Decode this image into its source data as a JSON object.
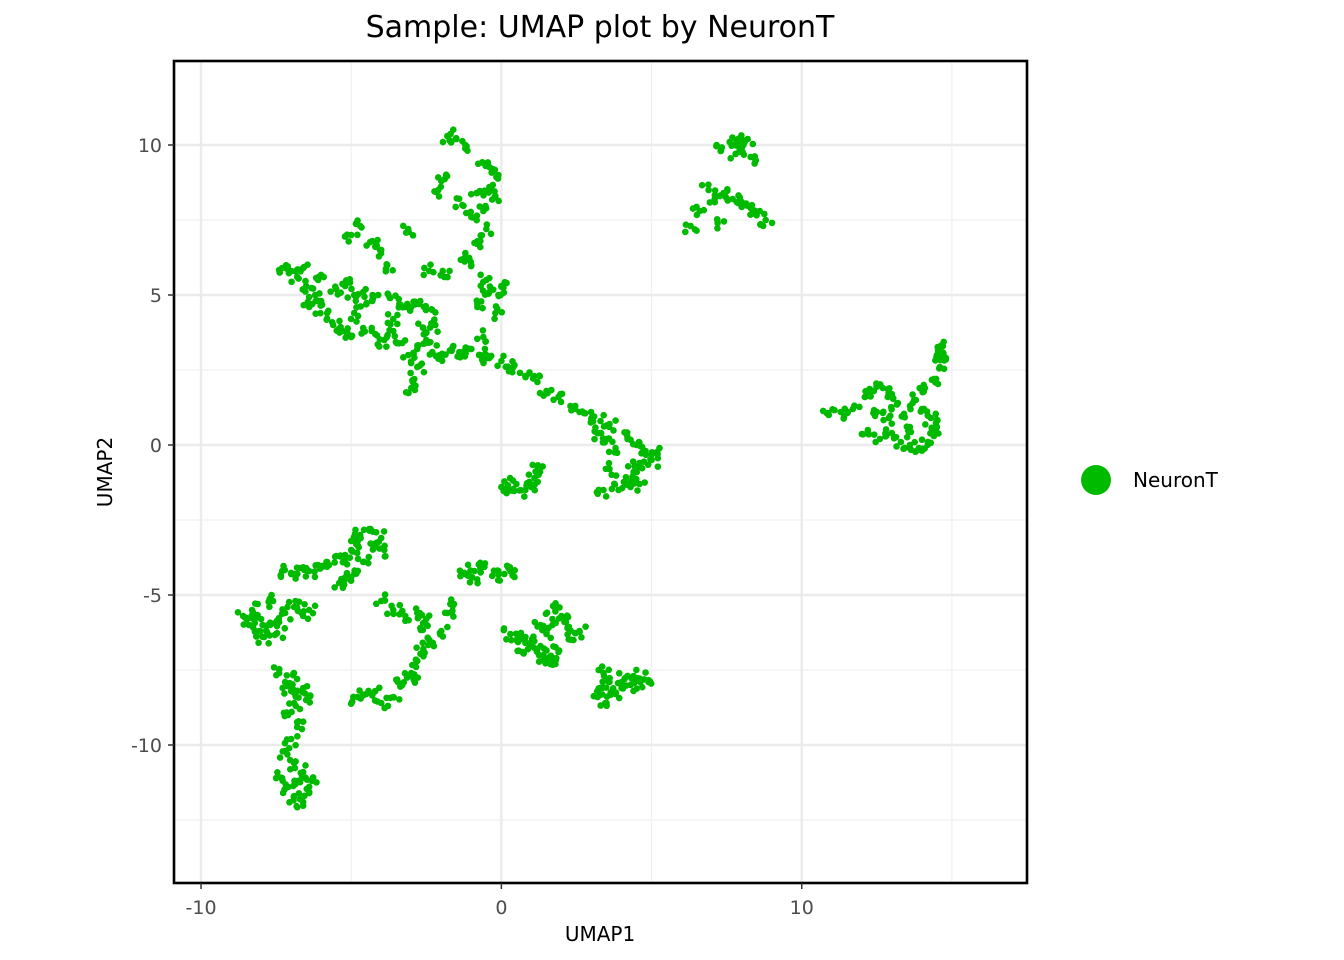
{
  "chart_data": {
    "type": "scatter",
    "title": "Sample: UMAP plot by NeuronT",
    "xlabel": "UMAP1",
    "ylabel": "UMAP2",
    "xlim": [
      -10.9,
      17.5
    ],
    "ylim": [
      -14.6,
      12.8
    ],
    "xticks": [
      -10,
      0,
      10
    ],
    "xtick_labels": [
      "-10",
      "0",
      "10"
    ],
    "yticks": [
      -10,
      -5,
      0,
      5,
      10
    ],
    "ytick_labels": [
      "-10",
      "-5",
      "0",
      "5",
      "10"
    ],
    "grid": true,
    "legend_position": "right",
    "series": [
      {
        "name": "NeuronT",
        "color": "#00BA00",
        "points": [
          [
            -1.5,
            10.2
          ],
          [
            -1.2,
            10.0
          ],
          [
            -1.8,
            10.3
          ],
          [
            -0.6,
            9.4
          ],
          [
            -0.3,
            9.2
          ],
          [
            -0.1,
            9.0
          ],
          [
            -0.4,
            8.6
          ],
          [
            -0.8,
            8.4
          ],
          [
            -0.2,
            8.3
          ],
          [
            -2.0,
            8.8
          ],
          [
            -2.1,
            8.5
          ],
          [
            -1.3,
            8.0
          ],
          [
            -1.0,
            7.6
          ],
          [
            -0.6,
            7.8
          ],
          [
            -0.5,
            7.2
          ],
          [
            -0.7,
            6.8
          ],
          [
            -1.2,
            6.4
          ],
          [
            -1.0,
            6.0
          ],
          [
            -0.5,
            5.5
          ],
          [
            -0.4,
            5.1
          ],
          [
            -0.1,
            5.0
          ],
          [
            -0.8,
            4.6
          ],
          [
            -0.2,
            4.4
          ],
          [
            0.0,
            5.3
          ],
          [
            -0.6,
            3.6
          ],
          [
            -5.0,
            7.0
          ],
          [
            -4.7,
            7.3
          ],
          [
            -4.3,
            6.8
          ],
          [
            -4.0,
            6.5
          ],
          [
            -3.8,
            6.0
          ],
          [
            -3.1,
            7.2
          ],
          [
            -1.9,
            5.6
          ],
          [
            -2.4,
            5.8
          ],
          [
            -7.3,
            5.9
          ],
          [
            -7.0,
            5.8
          ],
          [
            -6.6,
            5.9
          ],
          [
            -6.8,
            5.6
          ],
          [
            -6.5,
            5.3
          ],
          [
            -6.2,
            5.0
          ],
          [
            -6.0,
            4.8
          ],
          [
            -5.8,
            4.4
          ],
          [
            -5.5,
            5.2
          ],
          [
            -5.2,
            5.3
          ],
          [
            -4.9,
            5.0
          ],
          [
            -4.6,
            5.1
          ],
          [
            -4.3,
            4.8
          ],
          [
            -4.1,
            5.0
          ],
          [
            -3.7,
            4.9
          ],
          [
            -3.4,
            4.7
          ],
          [
            -3.0,
            4.6
          ],
          [
            -2.7,
            4.8
          ],
          [
            -2.3,
            4.5
          ],
          [
            -5.6,
            4.0
          ],
          [
            -5.3,
            3.8
          ],
          [
            -5.0,
            3.6
          ],
          [
            -4.6,
            3.9
          ],
          [
            -4.2,
            3.7
          ],
          [
            -3.9,
            3.5
          ],
          [
            -3.6,
            3.8
          ],
          [
            -3.3,
            3.4
          ],
          [
            -3.1,
            3.0
          ],
          [
            -2.8,
            3.2
          ],
          [
            -2.5,
            3.5
          ],
          [
            -2.3,
            3.1
          ],
          [
            -2.0,
            2.9
          ],
          [
            -2.8,
            2.6
          ],
          [
            -1.6,
            3.3
          ],
          [
            -1.3,
            3.1
          ],
          [
            -1.0,
            3.2
          ],
          [
            -0.7,
            3.0
          ],
          [
            -0.4,
            2.9
          ],
          [
            -6.1,
            5.5
          ],
          [
            -6.4,
            4.6
          ],
          [
            -4.9,
            4.4
          ],
          [
            -3.6,
            4.2
          ],
          [
            -2.6,
            3.9
          ],
          [
            -2.2,
            4.0
          ],
          [
            -3.0,
            1.9
          ],
          [
            -2.9,
            2.2
          ],
          [
            0.0,
            2.8
          ],
          [
            0.4,
            2.6
          ],
          [
            0.8,
            2.3
          ],
          [
            1.2,
            2.1
          ],
          [
            1.5,
            1.8
          ],
          [
            1.9,
            1.6
          ],
          [
            2.3,
            1.3
          ],
          [
            2.6,
            1.1
          ],
          [
            3.0,
            0.9
          ],
          [
            3.3,
            0.8
          ],
          [
            3.6,
            0.7
          ],
          [
            3.2,
            0.4
          ],
          [
            3.5,
            0.2
          ],
          [
            3.8,
            -0.1
          ],
          [
            4.2,
            0.2
          ],
          [
            4.5,
            0.0
          ],
          [
            4.8,
            -0.2
          ],
          [
            5.0,
            -0.5
          ],
          [
            5.2,
            -0.3
          ],
          [
            4.6,
            -0.6
          ],
          [
            4.4,
            -0.9
          ],
          [
            4.2,
            -1.2
          ],
          [
            4.6,
            -1.3
          ],
          [
            4.3,
            -1.4
          ],
          [
            3.6,
            -0.8
          ],
          [
            3.9,
            -1.5
          ],
          [
            3.4,
            -1.5
          ],
          [
            0.0,
            -1.4
          ],
          [
            0.2,
            -1.5
          ],
          [
            0.5,
            -1.3
          ],
          [
            1.0,
            -1.4
          ],
          [
            1.1,
            -1.1
          ],
          [
            1.2,
            -0.7
          ],
          [
            0.8,
            -1.5
          ],
          [
            6.3,
            7.3
          ],
          [
            6.6,
            7.8
          ],
          [
            6.9,
            8.5
          ],
          [
            7.1,
            8.2
          ],
          [
            7.4,
            8.4
          ],
          [
            7.7,
            8.2
          ],
          [
            8.0,
            8.1
          ],
          [
            8.3,
            7.9
          ],
          [
            8.6,
            7.8
          ],
          [
            8.8,
            7.5
          ],
          [
            7.3,
            9.8
          ],
          [
            7.6,
            10.1
          ],
          [
            7.9,
            10.2
          ],
          [
            8.2,
            10.2
          ],
          [
            7.8,
            9.7
          ],
          [
            8.0,
            9.9
          ],
          [
            7.2,
            7.4
          ],
          [
            8.3,
            9.6
          ],
          [
            10.9,
            1.0
          ],
          [
            11.3,
            1.1
          ],
          [
            11.7,
            1.2
          ],
          [
            12.1,
            1.6
          ],
          [
            12.4,
            1.8
          ],
          [
            12.7,
            1.9
          ],
          [
            13.0,
            1.7
          ],
          [
            13.2,
            1.4
          ],
          [
            12.5,
            1.1
          ],
          [
            12.9,
            0.9
          ],
          [
            12.2,
            0.5
          ],
          [
            12.6,
            0.2
          ],
          [
            13.0,
            0.4
          ],
          [
            13.3,
            0.1
          ],
          [
            13.6,
            0.0
          ],
          [
            13.9,
            -0.1
          ],
          [
            14.2,
            0.1
          ],
          [
            14.4,
            0.3
          ],
          [
            14.5,
            0.6
          ],
          [
            14.3,
            0.9
          ],
          [
            14.0,
            1.2
          ],
          [
            13.8,
            1.5
          ],
          [
            14.1,
            1.9
          ],
          [
            14.4,
            2.2
          ],
          [
            14.6,
            2.6
          ],
          [
            14.8,
            2.9
          ],
          [
            14.7,
            3.3
          ],
          [
            14.5,
            3.0
          ],
          [
            13.6,
            0.6
          ],
          [
            13.4,
            1.0
          ],
          [
            -4.4,
            -2.8
          ],
          [
            -4.7,
            -3.0
          ],
          [
            -5.0,
            -3.2
          ],
          [
            -4.3,
            -3.3
          ],
          [
            -4.0,
            -3.1
          ],
          [
            -3.9,
            -3.5
          ],
          [
            -4.8,
            -3.6
          ],
          [
            -5.2,
            -3.8
          ],
          [
            -5.5,
            -3.7
          ],
          [
            -5.8,
            -3.9
          ],
          [
            -6.1,
            -4.0
          ],
          [
            -6.4,
            -4.2
          ],
          [
            -6.7,
            -4.1
          ],
          [
            -7.0,
            -4.3
          ],
          [
            -7.3,
            -4.2
          ],
          [
            -4.6,
            -3.9
          ],
          [
            -4.9,
            -4.3
          ],
          [
            -5.4,
            -4.6
          ],
          [
            -5.0,
            -4.4
          ],
          [
            -8.6,
            -5.7
          ],
          [
            -8.3,
            -5.5
          ],
          [
            -8.0,
            -5.8
          ],
          [
            -7.7,
            -6.0
          ],
          [
            -7.4,
            -5.9
          ],
          [
            -8.2,
            -6.2
          ],
          [
            -7.9,
            -6.4
          ],
          [
            -7.5,
            -6.3
          ],
          [
            -7.2,
            -5.6
          ],
          [
            -6.9,
            -5.4
          ],
          [
            -6.6,
            -5.7
          ],
          [
            -6.4,
            -5.5
          ],
          [
            -7.6,
            -5.2
          ],
          [
            -8.4,
            -6.0
          ],
          [
            -7.4,
            -7.6
          ],
          [
            -7.2,
            -7.9
          ],
          [
            -7.0,
            -8.2
          ],
          [
            -6.8,
            -7.8
          ],
          [
            -6.6,
            -8.1
          ],
          [
            -6.9,
            -8.6
          ],
          [
            -7.1,
            -9.0
          ],
          [
            -6.8,
            -9.4
          ],
          [
            -7.0,
            -9.8
          ],
          [
            -7.2,
            -10.2
          ],
          [
            -6.9,
            -10.6
          ],
          [
            -6.6,
            -10.9
          ],
          [
            -6.8,
            -11.2
          ],
          [
            -7.1,
            -11.4
          ],
          [
            -6.9,
            -11.7
          ],
          [
            -6.6,
            -11.9
          ],
          [
            -6.4,
            -11.6
          ],
          [
            -6.3,
            -11.2
          ],
          [
            -6.5,
            -8.5
          ],
          [
            -7.3,
            -11.1
          ],
          [
            -4.2,
            -8.2
          ],
          [
            -4.5,
            -8.3
          ],
          [
            -4.8,
            -8.4
          ],
          [
            -4.0,
            -8.6
          ],
          [
            -3.6,
            -8.4
          ],
          [
            -3.3,
            -8.0
          ],
          [
            -3.0,
            -7.6
          ],
          [
            -2.8,
            -7.2
          ],
          [
            -3.1,
            -7.7
          ],
          [
            -2.6,
            -6.8
          ],
          [
            -2.4,
            -6.5
          ],
          [
            -2.7,
            -6.1
          ],
          [
            -2.5,
            -5.8
          ],
          [
            -2.8,
            -5.6
          ],
          [
            -3.2,
            -5.7
          ],
          [
            -3.6,
            -5.5
          ],
          [
            -4.0,
            -5.2
          ],
          [
            -1.8,
            -5.6
          ],
          [
            -1.7,
            -5.3
          ],
          [
            -2.0,
            -6.2
          ],
          [
            -1.2,
            -4.3
          ],
          [
            -0.9,
            -4.2
          ],
          [
            -0.7,
            -4.1
          ],
          [
            -0.1,
            -4.2
          ],
          [
            0.1,
            -4.3
          ],
          [
            0.3,
            -4.2
          ],
          [
            -1.0,
            -4.4
          ],
          [
            0.3,
            -6.3
          ],
          [
            0.5,
            -6.5
          ],
          [
            0.8,
            -6.4
          ],
          [
            1.0,
            -6.6
          ],
          [
            1.2,
            -6.8
          ],
          [
            1.4,
            -7.0
          ],
          [
            1.6,
            -7.2
          ],
          [
            1.8,
            -7.3
          ],
          [
            1.5,
            -6.3
          ],
          [
            1.7,
            -5.8
          ],
          [
            1.8,
            -5.5
          ],
          [
            2.0,
            -5.7
          ],
          [
            2.2,
            -6.1
          ],
          [
            2.4,
            -6.5
          ],
          [
            2.6,
            -6.2
          ],
          [
            1.3,
            -6.0
          ],
          [
            0.7,
            -6.9
          ],
          [
            1.9,
            -6.9
          ],
          [
            3.2,
            -8.4
          ],
          [
            3.5,
            -8.6
          ],
          [
            3.8,
            -8.3
          ],
          [
            4.0,
            -8.1
          ],
          [
            4.3,
            -8.0
          ],
          [
            4.6,
            -7.8
          ],
          [
            4.9,
            -7.9
          ],
          [
            4.4,
            -7.7
          ],
          [
            4.1,
            -7.8
          ],
          [
            3.6,
            -7.9
          ],
          [
            3.3,
            -8.1
          ],
          [
            3.4,
            -7.6
          ]
        ]
      }
    ]
  },
  "legend": {
    "items": [
      {
        "label": "NeuronT",
        "color": "#00BA00"
      }
    ]
  }
}
